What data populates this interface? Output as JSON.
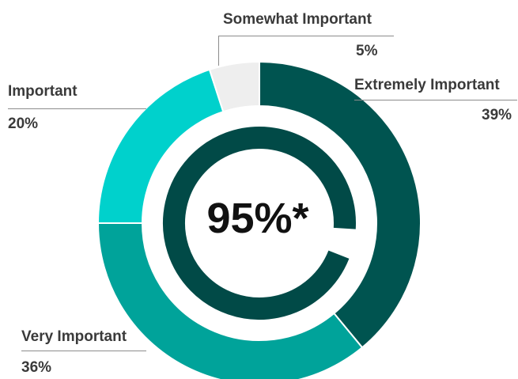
{
  "chart_data": {
    "type": "pie",
    "style": "donut",
    "center_value": "95%*",
    "slices": [
      {
        "label": "Extremely Important",
        "value": 39,
        "value_label": "39%",
        "color": "#005450"
      },
      {
        "label": "Very Important",
        "value": 36,
        "value_label": "36%",
        "color": "#00A39A"
      },
      {
        "label": "Important",
        "value": 20,
        "value_label": "20%",
        "color": "#00D1CC"
      },
      {
        "label": "Somewhat Important",
        "value": 5,
        "value_label": "5%",
        "color": "#EEEEEE"
      }
    ],
    "inner_ring": {
      "value": 95,
      "color": "#014A47"
    }
  }
}
